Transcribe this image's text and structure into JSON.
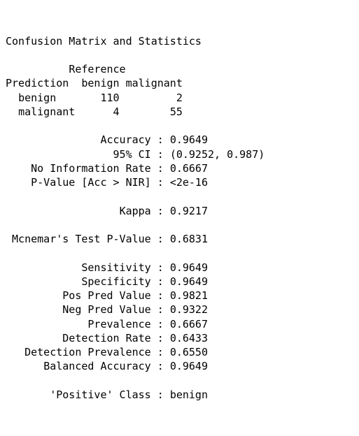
{
  "header": "Confusion Matrix and Statistics",
  "matrix": {
    "ref_header": "Reference",
    "pred_header": "Prediction",
    "col1": "benign",
    "col2": "malignant",
    "row1_label": "benign",
    "row1_c1": "110",
    "row1_c2": "2",
    "row2_label": "malignant",
    "row2_c1": "4",
    "row2_c2": "55"
  },
  "stats": {
    "accuracy_label": "Accuracy",
    "accuracy_val": "0.9649",
    "ci_label": "95% CI",
    "ci_val": "(0.9252, 0.987)",
    "nir_label": "No Information Rate",
    "nir_val": "0.6667",
    "pval_label": "P-Value [Acc > NIR]",
    "pval_val": "<2e-16",
    "kappa_label": "Kappa",
    "kappa_val": "0.9217",
    "mcnemar_label": "Mcnemar's Test P-Value",
    "mcnemar_val": "0.6831",
    "sens_label": "Sensitivity",
    "sens_val": "0.9649",
    "spec_label": "Specificity",
    "spec_val": "0.9649",
    "ppv_label": "Pos Pred Value",
    "ppv_val": "0.9821",
    "npv_label": "Neg Pred Value",
    "npv_val": "0.9322",
    "prev_label": "Prevalence",
    "prev_val": "0.6667",
    "dr_label": "Detection Rate",
    "dr_val": "0.6433",
    "dp_label": "Detection Prevalence",
    "dp_val": "0.6550",
    "ba_label": "Balanced Accuracy",
    "ba_val": "0.9649",
    "pc_label": "'Positive' Class",
    "pc_val": "benign"
  }
}
